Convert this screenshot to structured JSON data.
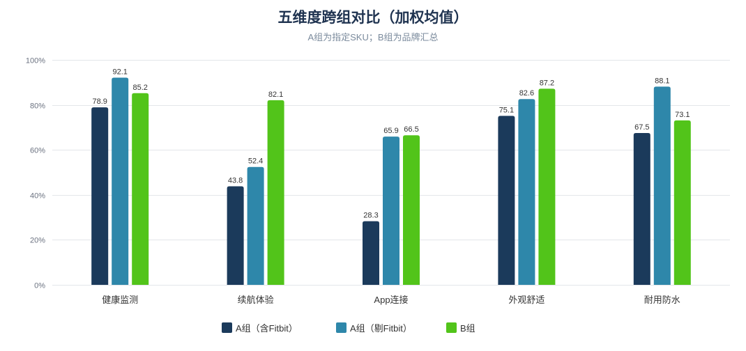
{
  "chart_data": {
    "type": "bar",
    "title": "五维度跨组对比（加权均值）",
    "subtitle": "A组为指定SKU；B组为品牌汇总",
    "xlabel": "",
    "ylabel": "",
    "categories": [
      "健康监测",
      "续航体验",
      "App连接",
      "外观舒适",
      "耐用防水"
    ],
    "series": [
      {
        "name": "A组（含Fitbit）",
        "color": "#1b3a5b",
        "values": [
          78.9,
          43.8,
          28.3,
          75.1,
          67.5
        ]
      },
      {
        "name": "A组（剔Fitbit）",
        "color": "#2e87aa",
        "values": [
          92.1,
          52.4,
          65.9,
          82.6,
          88.1
        ]
      },
      {
        "name": "B组",
        "color": "#52c41a",
        "values": [
          85.2,
          82.1,
          66.5,
          87.2,
          73.1
        ]
      }
    ],
    "ylim": [
      0,
      100
    ],
    "ytick_values": [
      0,
      20,
      40,
      60,
      80,
      100
    ],
    "ytick_labels": [
      "0%",
      "20%",
      "40%",
      "60%",
      "80%",
      "100%"
    ],
    "grid": true,
    "data_labels": true,
    "legend_position": "bottom"
  }
}
